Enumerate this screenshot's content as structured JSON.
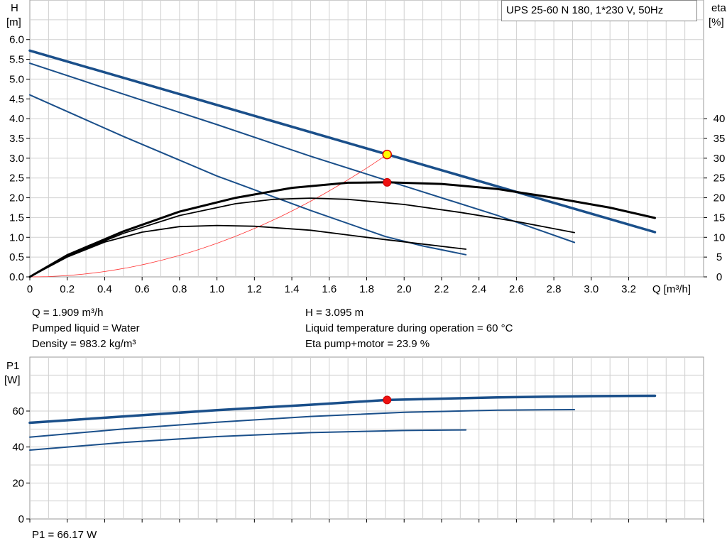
{
  "chart_data": [
    {
      "type": "line",
      "legend": "UPS 25-60 N 180, 1*230 V, 50Hz",
      "x_label": "Q [m³/h]",
      "xlim": [
        0,
        3.6
      ],
      "x_ticks": [
        "0",
        "0.2",
        "0.4",
        "0.6",
        "0.8",
        "1.0",
        "1.2",
        "1.4",
        "1.6",
        "1.8",
        "2.0",
        "2.2",
        "2.4",
        "2.6",
        "2.8",
        "3.0",
        "3.2"
      ],
      "y_left": {
        "label_line1": "H",
        "label_line2": "[m]",
        "ylim": [
          0,
          7
        ],
        "ticks": [
          "0.0",
          "0.5",
          "1.0",
          "1.5",
          "2.0",
          "2.5",
          "3.0",
          "3.5",
          "4.0",
          "4.5",
          "5.0",
          "5.5",
          "6.0"
        ]
      },
      "y_right": {
        "label_line1": "eta",
        "label_line2": "[%]",
        "ylim": [
          0,
          70
        ],
        "ticks": [
          "0",
          "5",
          "10",
          "15",
          "20",
          "25",
          "30",
          "35",
          "40"
        ]
      },
      "colors": {
        "head": "#1a4f8a",
        "eta": "#000000",
        "system": "#ff3333",
        "duty_fill": "#ffff00",
        "eta_point": "#ee1111"
      },
      "head_series": [
        {
          "speed": 3,
          "points": [
            [
              0,
              5.72
            ],
            [
              3.34,
              1.13
            ]
          ]
        },
        {
          "speed": 2,
          "points": [
            [
              0,
              5.4
            ],
            [
              0.5,
              4.62
            ],
            [
              1.0,
              3.85
            ],
            [
              1.5,
              3.05
            ],
            [
              2.0,
              2.3
            ],
            [
              2.5,
              1.55
            ],
            [
              2.91,
              0.87
            ]
          ]
        },
        {
          "speed": 1,
          "points": [
            [
              0,
              4.6
            ],
            [
              0.5,
              3.55
            ],
            [
              1.0,
              2.55
            ],
            [
              1.5,
              1.68
            ],
            [
              1.9,
              1.02
            ],
            [
              2.1,
              0.78
            ],
            [
              2.33,
              0.56
            ]
          ]
        }
      ],
      "eta_series": [
        {
          "speed": 3,
          "points": [
            [
              0,
              0
            ],
            [
              0.2,
              5.5
            ],
            [
              0.5,
              11.5
            ],
            [
              0.8,
              16.5
            ],
            [
              1.1,
              20.0
            ],
            [
              1.4,
              22.5
            ],
            [
              1.7,
              23.8
            ],
            [
              1.909,
              23.9
            ],
            [
              2.2,
              23.5
            ],
            [
              2.5,
              22.2
            ],
            [
              2.8,
              20.0
            ],
            [
              3.1,
              17.5
            ],
            [
              3.34,
              14.9
            ]
          ]
        },
        {
          "speed": 2,
          "points": [
            [
              0,
              0
            ],
            [
              0.2,
              5.3
            ],
            [
              0.5,
              11.0
            ],
            [
              0.8,
              15.5
            ],
            [
              1.1,
              18.5
            ],
            [
              1.3,
              19.6
            ],
            [
              1.5,
              19.9
            ],
            [
              1.7,
              19.6
            ],
            [
              2.0,
              18.3
            ],
            [
              2.3,
              16.3
            ],
            [
              2.6,
              14.0
            ],
            [
              2.91,
              11.2
            ]
          ]
        },
        {
          "speed": 1,
          "points": [
            [
              0,
              0
            ],
            [
              0.2,
              5.0
            ],
            [
              0.4,
              8.8
            ],
            [
              0.6,
              11.3
            ],
            [
              0.8,
              12.7
            ],
            [
              1.0,
              13.0
            ],
            [
              1.2,
              12.8
            ],
            [
              1.5,
              11.8
            ],
            [
              1.8,
              10.0
            ],
            [
              2.1,
              8.3
            ],
            [
              2.33,
              7.0
            ]
          ]
        }
      ],
      "system_curve": {
        "k": 0.8493,
        "x_max": 1.909
      },
      "duty_point": {
        "q": 1.909,
        "h": 3.095
      },
      "eta_point": {
        "q": 1.909,
        "eta": 23.9
      }
    },
    {
      "type": "line",
      "y_label_line1": "P1",
      "y_label_line2": "[W]",
      "xlim": [
        0,
        3.6
      ],
      "ylim": [
        0,
        90
      ],
      "y_ticks": [
        "0",
        "20",
        "40",
        "60"
      ],
      "colors": {
        "power": "#1a4f8a",
        "point": "#ee1111"
      },
      "power_series": [
        {
          "speed": 3,
          "points": [
            [
              0,
              53.5
            ],
            [
              0.5,
              57.0
            ],
            [
              1.0,
              60.5
            ],
            [
              1.5,
              63.5
            ],
            [
              1.909,
              66.17
            ],
            [
              2.5,
              67.6
            ],
            [
              3.0,
              68.3
            ],
            [
              3.34,
              68.5
            ]
          ]
        },
        {
          "speed": 2,
          "points": [
            [
              0,
              45.5
            ],
            [
              0.5,
              50.0
            ],
            [
              1.0,
              53.8
            ],
            [
              1.5,
              57.0
            ],
            [
              2.0,
              59.3
            ],
            [
              2.5,
              60.5
            ],
            [
              2.91,
              60.8
            ]
          ]
        },
        {
          "speed": 1,
          "points": [
            [
              0,
              38.3
            ],
            [
              0.5,
              42.5
            ],
            [
              1.0,
              45.8
            ],
            [
              1.5,
              48.0
            ],
            [
              2.0,
              49.2
            ],
            [
              2.33,
              49.5
            ]
          ]
        }
      ],
      "operating_point": {
        "q": 1.909,
        "p1": 66.17
      }
    }
  ],
  "info": {
    "q": "Q = 1.909 m³/h",
    "pumped_liquid": "Pumped liquid = Water",
    "density": "Density = 983.2 kg/m³",
    "h": "H = 3.095 m",
    "liquid_temp": "Liquid temperature during operation = 60 °C",
    "eta": "Eta pump+motor = 23.9 %",
    "p1": "P1 = 66.17 W"
  }
}
